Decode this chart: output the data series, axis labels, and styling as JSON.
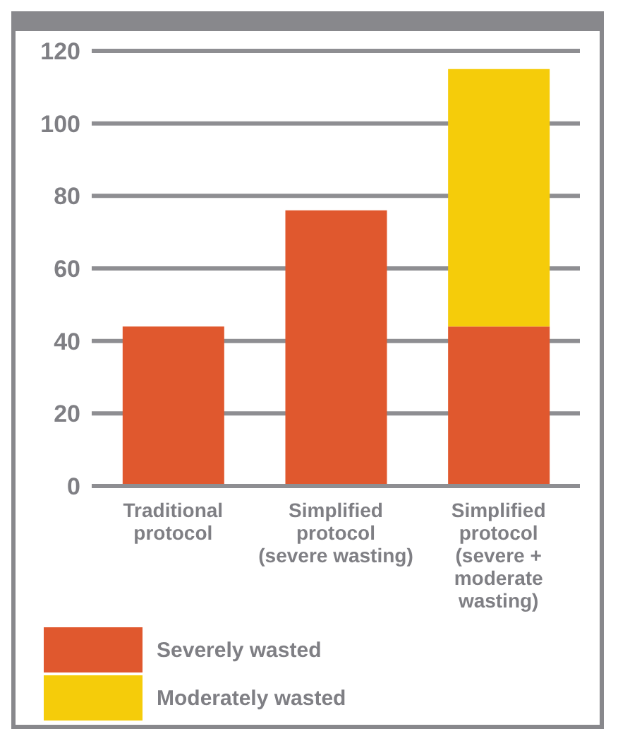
{
  "chart_data": {
    "type": "bar",
    "stacked": true,
    "categories": [
      "Traditional\nprotocol",
      "Simplified\nprotocol\n(severe wasting)",
      "Simplified\nprotocol\n(severe +\nmoderate\nwasting)"
    ],
    "series": [
      {
        "name": "Severely wasted",
        "color": "#e0582e",
        "values": [
          44,
          76,
          44
        ]
      },
      {
        "name": "Moderately wasted",
        "color": "#f5cc0a",
        "values": [
          null,
          null,
          71
        ]
      }
    ],
    "ylim": [
      0,
      120
    ],
    "yticks": [
      0,
      20,
      40,
      60,
      80,
      100,
      120
    ],
    "grid": "y",
    "legend": "bottom left"
  }
}
